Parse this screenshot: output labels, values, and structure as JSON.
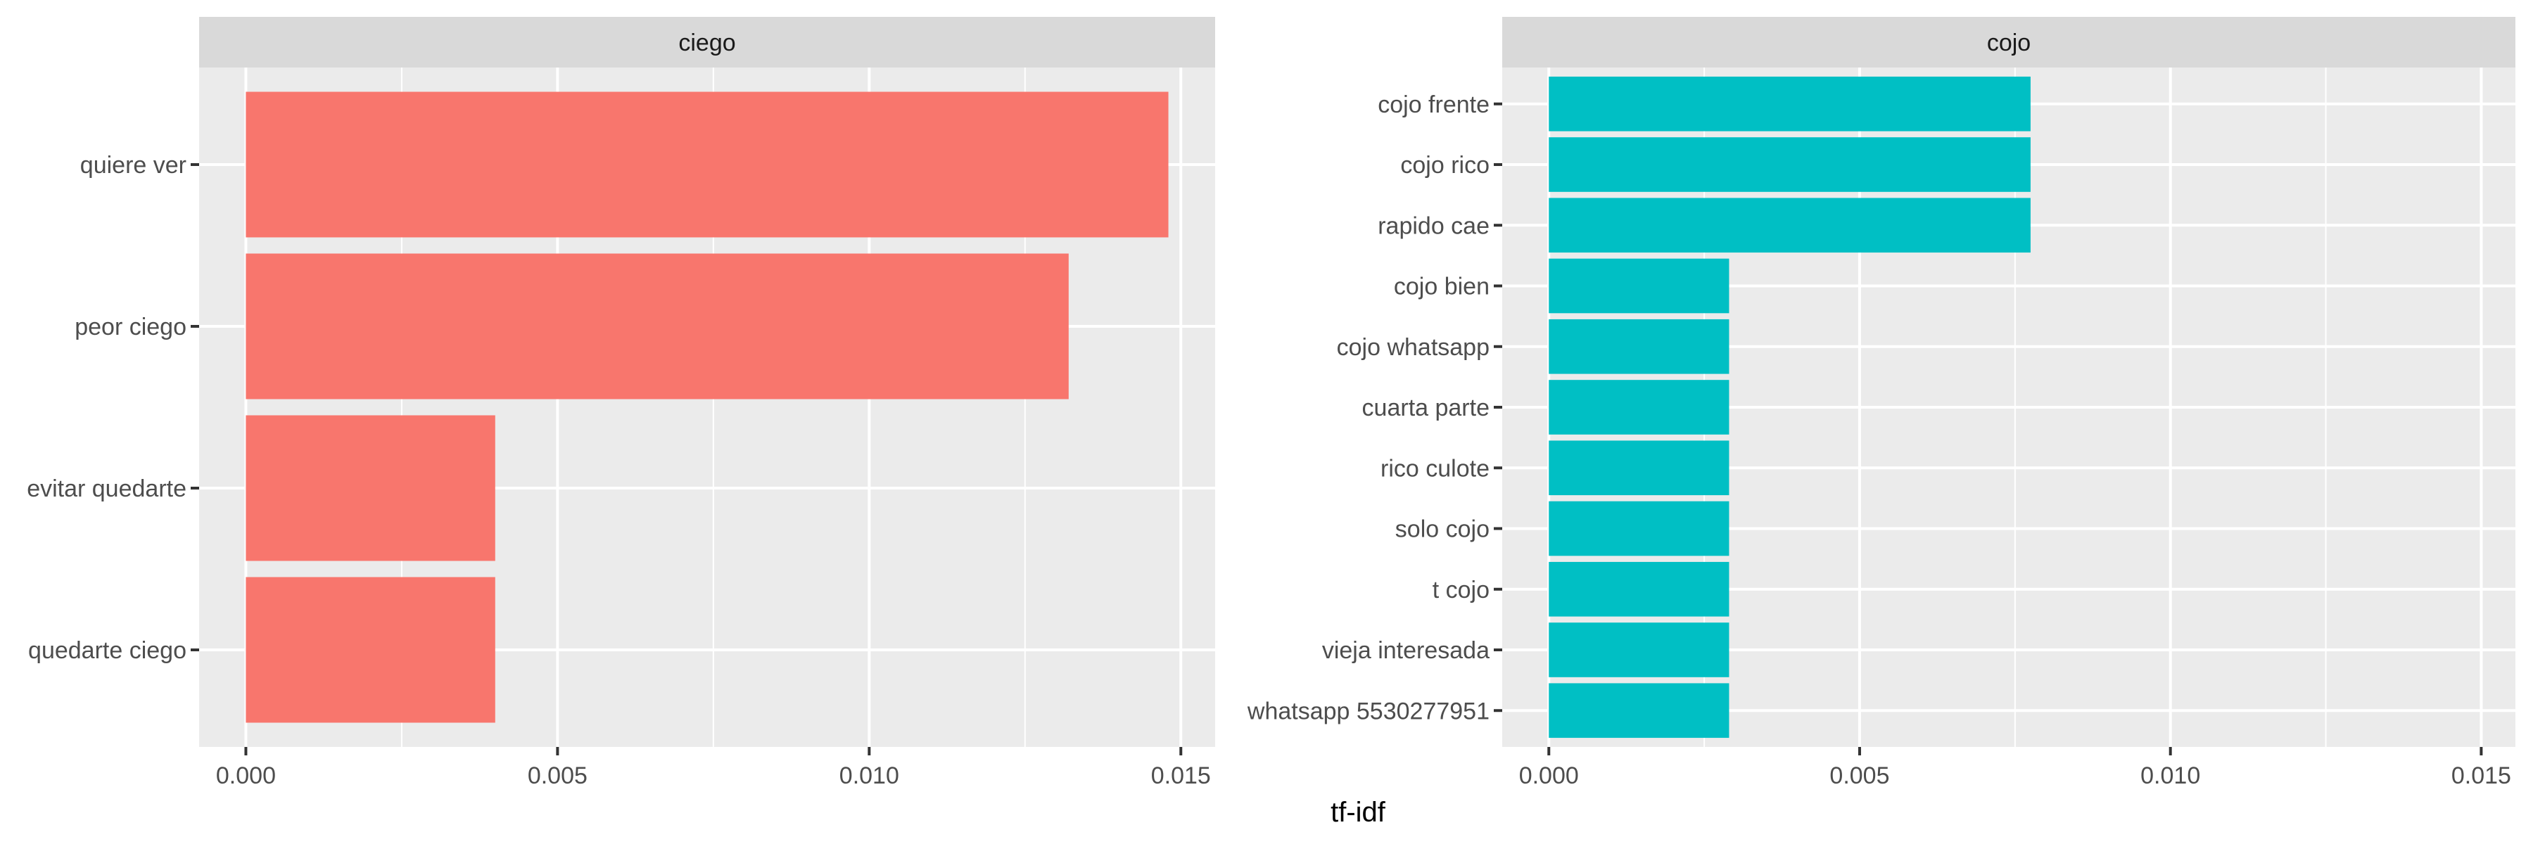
{
  "chart_data": {
    "type": "bar",
    "orientation": "horizontal",
    "xlabel": "tf-idf",
    "ylabel": "",
    "grid": true,
    "legend": "none",
    "panels": [
      {
        "title": "ciego",
        "color": "#F8766D",
        "xlim": [
          -0.00075,
          0.01555
        ],
        "x_ticks": [
          0.0,
          0.005,
          0.01,
          0.015
        ],
        "x_tick_labels": [
          "0.000",
          "0.005",
          "0.010",
          "0.015"
        ],
        "categories": [
          "quiere ver",
          "peor ciego",
          "evitar quedarte",
          "quedarte ciego"
        ],
        "values": [
          0.0148,
          0.0132,
          0.004,
          0.004
        ]
      },
      {
        "title": "cojo",
        "color": "#00BFC4",
        "xlim": [
          -0.00075,
          0.01555
        ],
        "x_ticks": [
          0.0,
          0.005,
          0.01,
          0.015
        ],
        "x_tick_labels": [
          "0.000",
          "0.005",
          "0.010",
          "0.015"
        ],
        "categories": [
          "cojo frente",
          "cojo rico",
          "rapido cae",
          "cojo bien",
          "cojo whatsapp",
          "cuarta parte",
          "rico culote",
          "solo cojo",
          "t cojo",
          "vieja interesada",
          "whatsapp 5530277951"
        ],
        "values": [
          0.00775,
          0.00775,
          0.00775,
          0.0029,
          0.0029,
          0.0029,
          0.0029,
          0.0029,
          0.0029,
          0.0029,
          0.0029
        ]
      }
    ]
  }
}
